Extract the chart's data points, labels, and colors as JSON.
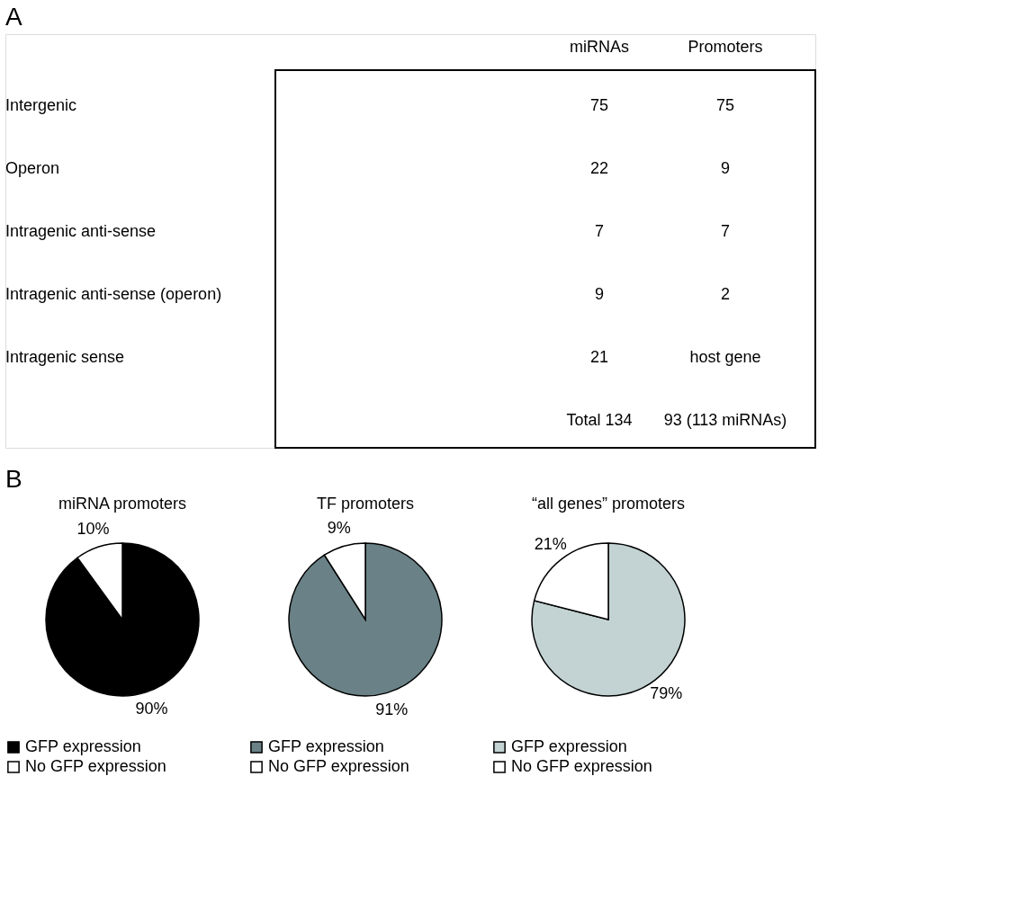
{
  "chart_data": [
    {
      "type": "other",
      "title": "A",
      "categories": [
        "Intergenic",
        "Operon",
        "Intragenic anti-sense",
        "Intragenic anti-sense (operon)",
        "Intragenic sense"
      ],
      "series": [
        {
          "name": "miRNAs",
          "values": [
            75,
            22,
            7,
            9,
            21
          ]
        },
        {
          "name": "Promoters",
          "values": [
            75,
            9,
            7,
            2,
            null
          ],
          "value_labels": [
            "75",
            "9",
            "7",
            "2",
            "host gene"
          ]
        }
      ],
      "data_labels": true,
      "annotations": [
        "Total 134",
        "93 (113 miRNAs)"
      ]
    },
    {
      "type": "pie",
      "title": "miRNA promoters",
      "categories": [
        "GFP expression",
        "No GFP expression"
      ],
      "values": [
        90,
        10
      ],
      "colors": [
        "#000000",
        "#ffffff"
      ],
      "value_labels": [
        "90%",
        "10%"
      ],
      "legend": "bottom",
      "annotations": [
        "B"
      ]
    },
    {
      "type": "pie",
      "title": "TF promoters",
      "categories": [
        "GFP expression",
        "No GFP expression"
      ],
      "values": [
        91,
        9
      ],
      "colors": [
        "#6a8287",
        "#ffffff"
      ],
      "value_labels": [
        "91%",
        "9%"
      ],
      "legend": "bottom"
    },
    {
      "type": "pie",
      "title": "“all genes” promoters",
      "categories": [
        "GFP expression",
        "No GFP expression"
      ],
      "values": [
        79,
        21
      ],
      "colors": [
        "#c3d3d3",
        "#ffffff"
      ],
      "value_labels": [
        "79%",
        "21%"
      ],
      "legend": "bottom"
    }
  ]
}
